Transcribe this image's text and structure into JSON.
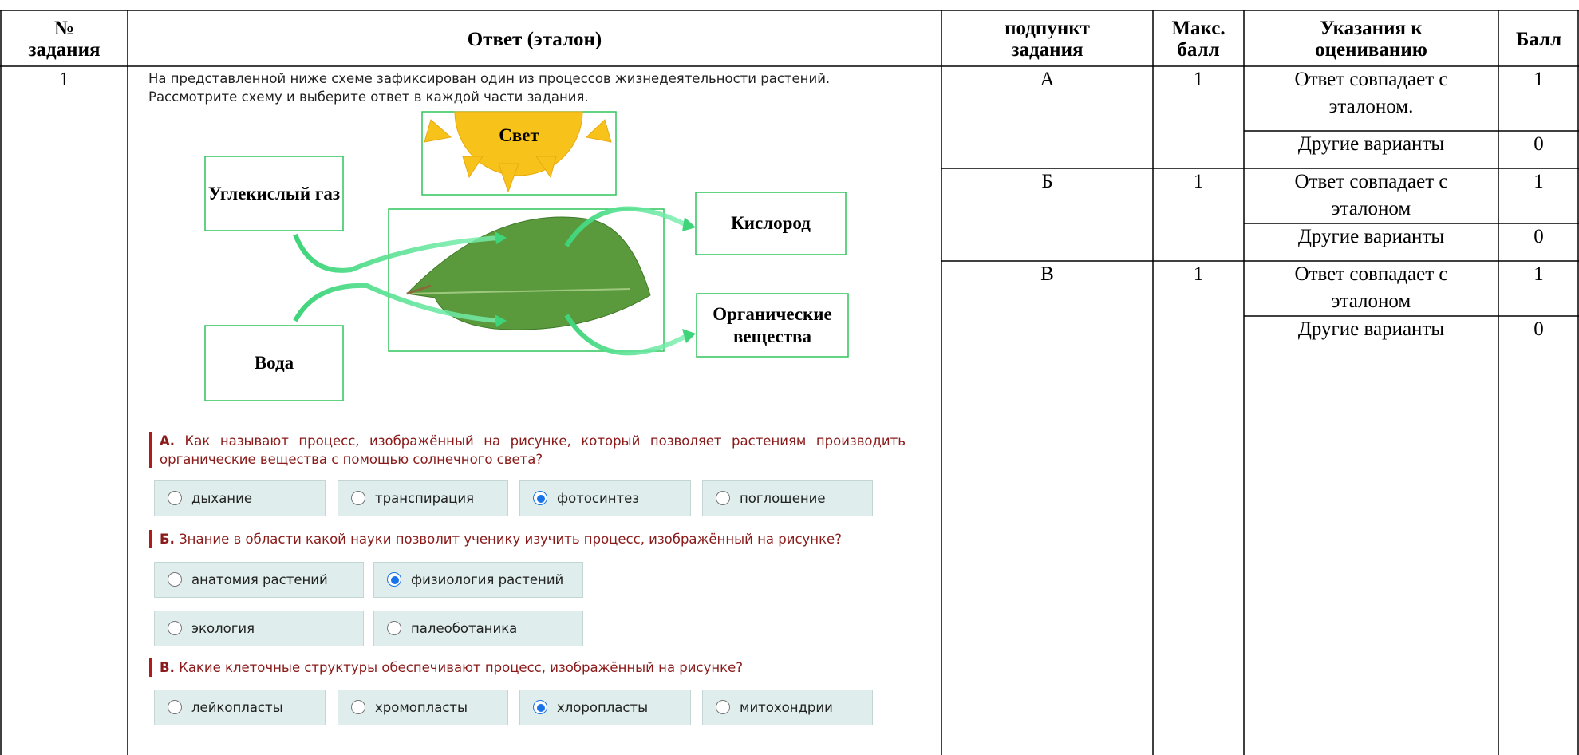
{
  "table": {
    "headers": [
      "№ задания",
      "Ответ (эталон)",
      "подпункт задания",
      "Макс. балл",
      "Указания к оцениванию",
      "Балл"
    ],
    "rows": [
      {
        "number": "1",
        "subitems": [
          {
            "label": "А",
            "max": 1,
            "criteria": [
              {
                "text": "Ответ совпадает с эталоном.",
                "score": 1
              },
              {
                "text": "Другие варианты",
                "score": 0
              }
            ]
          },
          {
            "label": "Б",
            "max": 1,
            "criteria": [
              {
                "text": "Ответ совпадает с эталоном",
                "score": 1
              },
              {
                "text": "Другие варианты",
                "score": 0
              }
            ]
          },
          {
            "label": "В",
            "max": 1,
            "criteria": [
              {
                "text": "Ответ совпадает с эталоном",
                "score": 1
              },
              {
                "text": "Другие варианты",
                "score": 0
              }
            ]
          }
        ]
      }
    ]
  },
  "task": {
    "intro": "На представленной ниже схеме зафиксирован один из процессов жизнедеятельности растений. Рассмотрите схему и выберите ответ в каждой части задания.",
    "diagram": {
      "light": "Свет",
      "co2": "Углекислый газ",
      "oxygen": "Кислород",
      "organic": "Органические вещества",
      "water": "Вода"
    },
    "questions": [
      {
        "letter": "А.",
        "text": "Как называют процесс, изображённый на рисунке, который позволяет растениям производить органические вещества с помощью солнечного света?",
        "options": [
          "дыхание",
          "транспирация",
          "фотосинтез",
          "поглощение"
        ],
        "selected": 2
      },
      {
        "letter": "Б.",
        "text": "Знание в области какой науки позволит ученику изучить процесс, изображённый на рисунке?",
        "options": [
          "анатомия растений",
          "физиология растений",
          "экология",
          "палеоботаника"
        ],
        "selected": 1
      },
      {
        "letter": "В.",
        "text": "Какие клеточные структуры обеспечивают процесс, изображённый на рисунке?",
        "options": [
          "лейкопласты",
          "хромопласты",
          "хлоропласты",
          "митохондрии"
        ],
        "selected": 2
      }
    ]
  }
}
